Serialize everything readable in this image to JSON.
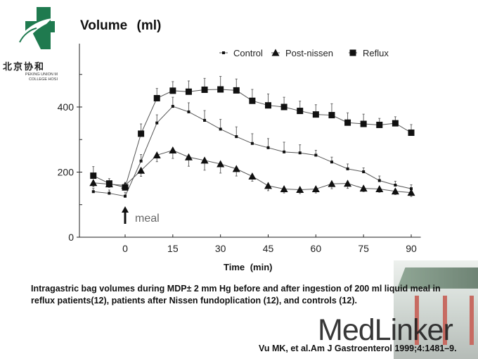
{
  "logo": {
    "cn": "北京协和",
    "en_line1": "PEKING UNION M",
    "en_line2": "COLLEGE HOSI"
  },
  "caption": "Intragastric bag volumes during MDP± 2 mm Hg before and after ingestion of 200 ml liquid meal in reflux patients(12), patients after Nissen fundoplication (12), and controls (12).",
  "watermark": "MedLinker",
  "citation": "Vu MK, et al.Am J Gastroenterol 1999;4:1481–9.",
  "chart_data": {
    "type": "line",
    "title": "Volume   (ml)",
    "xlabel": "Time   (min)",
    "ylabel": "Volume (ml)",
    "xlim": [
      -12,
      93
    ],
    "ylim": [
      0,
      560
    ],
    "xticks": [
      0,
      15,
      30,
      45,
      60,
      75,
      90
    ],
    "yticks": [
      0,
      200,
      400
    ],
    "annotation": "meal",
    "annotation_x": 0,
    "legend": "top-right",
    "x": [
      -10,
      -5,
      0,
      5,
      10,
      15,
      20,
      25,
      30,
      35,
      40,
      45,
      50,
      55,
      60,
      65,
      70,
      75,
      80,
      85,
      90
    ],
    "series": [
      {
        "name": "Control",
        "marker": "dot",
        "err_dir": "up",
        "values": [
          140,
          135,
          126,
          234,
          351,
          402,
          385,
          359,
          332,
          309,
          288,
          275,
          262,
          259,
          252,
          231,
          210,
          201,
          174,
          160,
          149
        ],
        "errors": [
          10,
          10,
          12,
          20,
          25,
          28,
          28,
          30,
          30,
          30,
          30,
          28,
          30,
          25,
          15,
          15,
          15,
          12,
          14,
          12,
          12
        ]
      },
      {
        "name": "Post-nissen",
        "marker": "triangle",
        "err_dir": "down",
        "values": [
          167,
          163,
          159,
          205,
          252,
          267,
          246,
          236,
          225,
          210,
          187,
          158,
          148,
          146,
          148,
          164,
          165,
          150,
          148,
          141,
          137
        ],
        "errors": [
          12,
          10,
          8,
          18,
          20,
          25,
          28,
          30,
          28,
          22,
          15,
          15,
          12,
          12,
          12,
          15,
          15,
          10,
          10,
          10,
          12
        ]
      },
      {
        "name": "Reflux",
        "marker": "square",
        "err_dir": "up",
        "values": [
          189,
          165,
          153,
          318,
          427,
          450,
          447,
          453,
          454,
          451,
          419,
          405,
          400,
          388,
          377,
          375,
          352,
          348,
          345,
          350,
          321
        ],
        "errors": [
          28,
          15,
          10,
          30,
          30,
          28,
          33,
          35,
          40,
          35,
          35,
          35,
          30,
          30,
          30,
          35,
          30,
          30,
          20,
          20,
          25
        ]
      }
    ]
  }
}
